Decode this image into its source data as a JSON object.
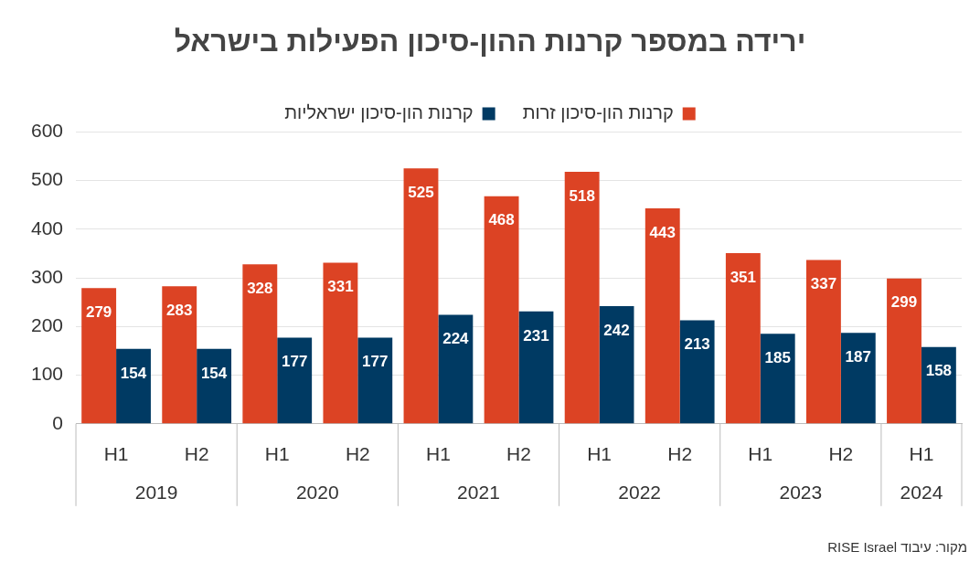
{
  "chart_data": {
    "type": "bar",
    "title": "ירידה במספר קרנות ההון-סיכון הפעילות בישראל",
    "categories": [
      "H1",
      "H2",
      "H1",
      "H2",
      "H1",
      "H2",
      "H1",
      "H2",
      "H1",
      "H2",
      "H1"
    ],
    "series": [
      {
        "name": "קרנות הון-סיכון זרות",
        "color": "#dc4324",
        "values": [
          279,
          283,
          328,
          331,
          525,
          468,
          518,
          443,
          351,
          337,
          299
        ]
      },
      {
        "name": "קרנות הון-סיכון ישראליות",
        "color": "#003a63",
        "values": [
          154,
          154,
          177,
          177,
          224,
          231,
          242,
          213,
          185,
          187,
          158
        ]
      }
    ],
    "ylim": [
      0,
      600
    ],
    "yticks": [
      0,
      100,
      200,
      300,
      400,
      500,
      600
    ],
    "grid": "y",
    "legend": "top",
    "data_labels": true,
    "annotations": [
      "2019",
      "2020",
      "2021",
      "2022",
      "2023",
      "2024",
      "מקור: עיבוד RISE Israel"
    ]
  }
}
